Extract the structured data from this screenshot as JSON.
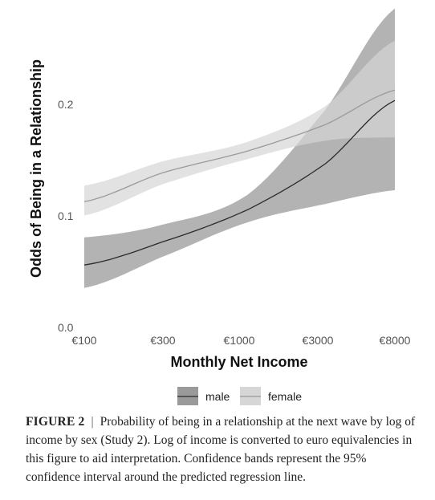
{
  "chart_data": {
    "type": "line",
    "xlabel": "Monthly Net Income",
    "ylabel": "Odds of Being in a Relationship",
    "x_scale": "log",
    "x_ticks": [
      "€100",
      "€300",
      "€1000",
      "€3000",
      "€8000"
    ],
    "x_tick_values": [
      100,
      300,
      1000,
      3000,
      8000
    ],
    "y_ticks": [
      "0.0",
      "0.1",
      "0.2"
    ],
    "y_tick_values": [
      0.0,
      0.1,
      0.2
    ],
    "xlim": [
      100,
      8000
    ],
    "ylim": [
      0.0,
      0.27
    ],
    "grid": false,
    "legend_position": "bottom",
    "series": [
      {
        "name": "male",
        "color": "#2b2b2b",
        "band_color": "#9a9a9a",
        "x": [
          100,
          300,
          1000,
          3000,
          8000
        ],
        "y": [
          0.055,
          0.075,
          0.103,
          0.143,
          0.198
        ],
        "lower": [
          0.035,
          0.062,
          0.092,
          0.108,
          0.12
        ],
        "upper": [
          0.079,
          0.09,
          0.116,
          0.19,
          0.278
        ]
      },
      {
        "name": "female",
        "color": "#9a9a9a",
        "band_color": "#d6d6d6",
        "x": [
          100,
          300,
          1000,
          3000,
          8000
        ],
        "y": [
          0.11,
          0.135,
          0.154,
          0.177,
          0.207
        ],
        "lower": [
          0.098,
          0.125,
          0.147,
          0.163,
          0.166
        ],
        "upper": [
          0.124,
          0.145,
          0.162,
          0.193,
          0.25
        ]
      }
    ]
  },
  "caption": {
    "label": "FIGURE 2",
    "separator": "|",
    "text": "Probability of being in a relationship at the next wave by log of income by sex (Study 2). Log of income is converted to euro equivalencies in this figure to aid interpretation. Confidence bands represent the 95% confidence interval around the predicted regression line."
  }
}
